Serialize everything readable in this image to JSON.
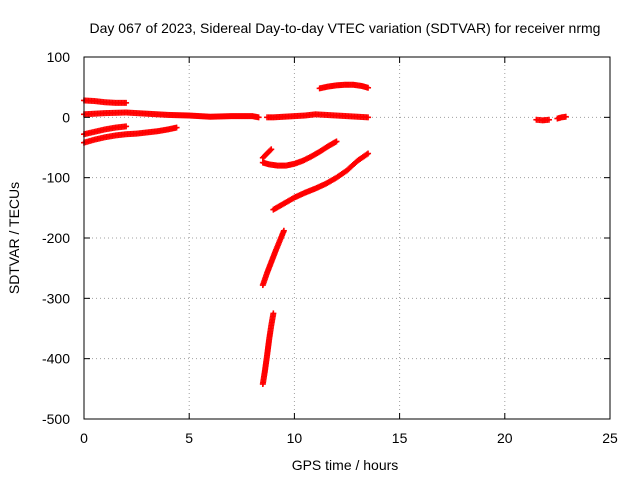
{
  "chart_data": {
    "type": "scatter",
    "title": "Day 067 of 2023, Sidereal Day-to-day VTEC variation (SDTVAR) for receiver nrmg",
    "xlabel": "GPS time / hours",
    "ylabel": "SDTVAR / TECUs",
    "xlim": [
      0,
      25
    ],
    "ylim": [
      -500,
      100
    ],
    "xticks": [
      "0",
      "5",
      "10",
      "15",
      "20",
      "25"
    ],
    "yticks": [
      "100",
      "0",
      "-100",
      "-200",
      "-300",
      "-400",
      "-500"
    ],
    "grid": true,
    "marker": "plus",
    "color": "#ff0000",
    "series": [
      {
        "x": [
          0.0,
          0.5,
          1.0,
          1.5,
          2.0
        ],
        "y": [
          28,
          27,
          25,
          24,
          24
        ]
      },
      {
        "x": [
          0.0,
          1.0,
          2.0,
          3.0,
          4.0,
          5.0,
          6.0,
          7.0,
          8.0,
          8.3
        ],
        "y": [
          5,
          7,
          8,
          6,
          4,
          3,
          1,
          2,
          2,
          0
        ]
      },
      {
        "x": [
          0.0,
          0.5,
          1.0,
          1.5,
          2.0
        ],
        "y": [
          -28,
          -24,
          -20,
          -17,
          -15
        ]
      },
      {
        "x": [
          0.0,
          0.5,
          1.0,
          1.5,
          2.0,
          2.5,
          3.0,
          3.5,
          4.0,
          4.4
        ],
        "y": [
          -42,
          -37,
          -33,
          -30,
          -28,
          -27,
          -25,
          -23,
          -20,
          -17
        ]
      },
      {
        "x": [
          8.7,
          9.0,
          9.5,
          10.0,
          10.5,
          11.0,
          11.5,
          12.0,
          12.5,
          13.0,
          13.5
        ],
        "y": [
          0,
          0,
          1,
          2,
          3,
          5,
          4,
          3,
          2,
          1,
          0
        ]
      },
      {
        "x": [
          11.2,
          11.6,
          12.0,
          12.4,
          12.8,
          13.2,
          13.5
        ],
        "y": [
          48,
          51,
          53,
          54,
          54,
          52,
          49
        ]
      },
      {
        "x": [
          8.5,
          8.7,
          8.9
        ],
        "y": [
          -67,
          -60,
          -53
        ]
      },
      {
        "x": [
          8.5,
          8.8,
          9.2,
          9.6,
          10.0,
          10.4,
          10.8,
          11.2,
          11.6,
          12.0
        ],
        "y": [
          -75,
          -78,
          -80,
          -80,
          -77,
          -72,
          -65,
          -57,
          -48,
          -40
        ]
      },
      {
        "x": [
          9.0,
          9.5,
          10.0,
          10.5,
          11.0,
          11.5,
          12.0,
          12.5,
          13.0,
          13.5
        ],
        "y": [
          -153,
          -143,
          -133,
          -125,
          -118,
          -110,
          -100,
          -88,
          -72,
          -60
        ]
      },
      {
        "x": [
          8.5,
          8.7,
          8.9,
          9.1,
          9.3,
          9.5
        ],
        "y": [
          -278,
          -258,
          -240,
          -222,
          -205,
          -188
        ]
      },
      {
        "x": [
          8.5,
          8.6,
          8.7,
          8.8,
          8.9,
          9.0
        ],
        "y": [
          -442,
          -420,
          -395,
          -368,
          -345,
          -325
        ]
      },
      {
        "x": [
          21.5,
          21.8,
          22.1
        ],
        "y": [
          -4,
          -5,
          -4
        ]
      },
      {
        "x": [
          22.5,
          22.7,
          22.9
        ],
        "y": [
          -2,
          0,
          1
        ]
      }
    ]
  }
}
